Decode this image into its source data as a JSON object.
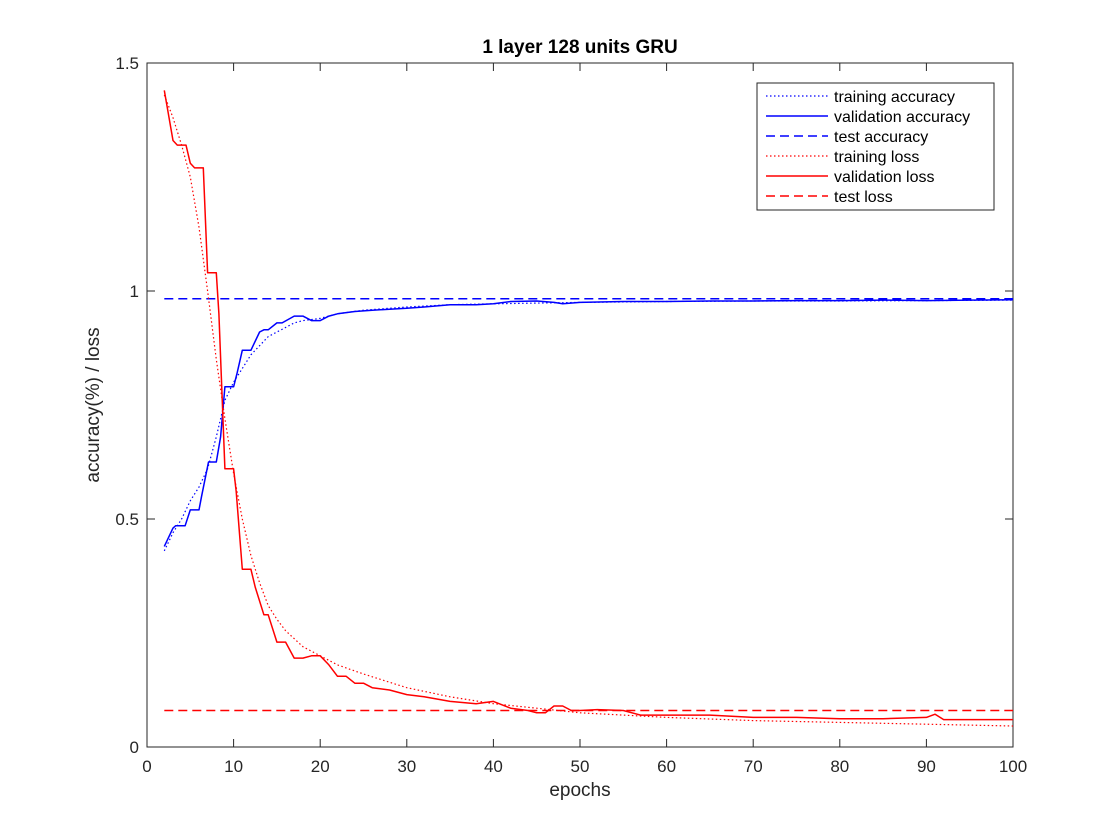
{
  "chart_data": {
    "type": "line",
    "title": "1 layer 128 units GRU",
    "xlabel": "epochs",
    "ylabel": "accuracy(%) / loss",
    "xlim": [
      0,
      100
    ],
    "ylim": [
      0,
      1.5
    ],
    "xticks": [
      "0",
      "10",
      "20",
      "30",
      "40",
      "50",
      "60",
      "70",
      "80",
      "90",
      "100"
    ],
    "yticks": [
      "0",
      "0.5",
      "1",
      "1.5"
    ],
    "grid": false,
    "legend_position": "top-right",
    "series": [
      {
        "name": "training accuracy",
        "color": "#0000ff",
        "style": "dotted",
        "x": [
          2,
          3,
          4,
          5,
          6,
          7,
          8,
          9,
          10,
          11,
          12,
          13,
          14,
          15,
          16,
          17,
          18,
          20,
          22,
          25,
          30,
          35,
          40,
          50,
          60,
          70,
          80,
          90,
          100
        ],
        "y": [
          0.43,
          0.47,
          0.5,
          0.54,
          0.57,
          0.61,
          0.68,
          0.76,
          0.8,
          0.83,
          0.86,
          0.88,
          0.9,
          0.91,
          0.92,
          0.93,
          0.935,
          0.94,
          0.95,
          0.958,
          0.965,
          0.97,
          0.972,
          0.975,
          0.977,
          0.978,
          0.978,
          0.979,
          0.98
        ]
      },
      {
        "name": "validation accuracy",
        "color": "#0000ff",
        "style": "solid",
        "x": [
          2,
          3,
          3.3,
          4.4,
          5,
          6,
          6.3,
          7.1,
          8,
          8.5,
          9,
          10,
          10.4,
          11,
          12,
          13,
          13.5,
          14,
          15,
          15.6,
          17,
          18,
          19,
          20,
          21,
          22,
          24,
          26,
          28,
          30,
          32,
          35,
          38,
          40,
          42,
          45,
          47,
          48,
          50,
          55,
          60,
          65,
          70,
          75,
          80,
          85,
          90,
          95,
          100
        ],
        "y": [
          0.44,
          0.48,
          0.485,
          0.485,
          0.52,
          0.52,
          0.55,
          0.625,
          0.625,
          0.68,
          0.79,
          0.79,
          0.82,
          0.87,
          0.87,
          0.91,
          0.915,
          0.915,
          0.93,
          0.93,
          0.945,
          0.945,
          0.935,
          0.935,
          0.945,
          0.95,
          0.955,
          0.958,
          0.96,
          0.962,
          0.965,
          0.97,
          0.97,
          0.972,
          0.977,
          0.978,
          0.975,
          0.972,
          0.975,
          0.977,
          0.977,
          0.978,
          0.978,
          0.979,
          0.979,
          0.98,
          0.979,
          0.98,
          0.981
        ]
      },
      {
        "name": "test accuracy",
        "color": "#0000ff",
        "style": "dashed",
        "x": [
          2,
          100
        ],
        "y": [
          0.983,
          0.983
        ]
      },
      {
        "name": "training loss",
        "color": "#ff0000",
        "style": "dotted",
        "x": [
          2,
          3,
          4,
          5,
          6,
          7,
          8,
          9,
          10,
          11,
          12,
          13,
          14,
          15,
          16,
          18,
          20,
          22,
          25,
          30,
          35,
          40,
          45,
          50,
          60,
          70,
          80,
          90,
          100
        ],
        "y": [
          1.43,
          1.38,
          1.32,
          1.25,
          1.14,
          1.0,
          0.85,
          0.72,
          0.6,
          0.5,
          0.42,
          0.36,
          0.31,
          0.28,
          0.255,
          0.22,
          0.2,
          0.18,
          0.16,
          0.13,
          0.11,
          0.095,
          0.085,
          0.075,
          0.065,
          0.058,
          0.054,
          0.05,
          0.046
        ]
      },
      {
        "name": "validation loss",
        "color": "#ff0000",
        "style": "solid",
        "x": [
          2,
          3,
          3.5,
          4.5,
          5,
          5.5,
          6.5,
          7,
          8,
          8.3,
          9,
          10,
          10.3,
          11,
          12,
          12.5,
          13.5,
          14,
          15,
          16,
          17,
          18,
          19,
          20,
          21,
          22,
          23,
          24,
          25,
          26,
          28,
          30,
          32,
          35,
          38,
          40,
          42,
          44,
          45,
          46,
          47,
          48,
          49,
          50,
          52,
          55,
          57,
          60,
          65,
          70,
          75,
          80,
          85,
          90,
          91,
          92,
          95,
          100
        ],
        "y": [
          1.44,
          1.33,
          1.32,
          1.32,
          1.28,
          1.27,
          1.27,
          1.04,
          1.04,
          0.95,
          0.61,
          0.61,
          0.56,
          0.39,
          0.39,
          0.35,
          0.29,
          0.29,
          0.23,
          0.23,
          0.195,
          0.195,
          0.2,
          0.2,
          0.18,
          0.155,
          0.155,
          0.14,
          0.14,
          0.13,
          0.125,
          0.115,
          0.11,
          0.1,
          0.095,
          0.1,
          0.085,
          0.08,
          0.075,
          0.075,
          0.09,
          0.09,
          0.08,
          0.08,
          0.082,
          0.08,
          0.07,
          0.07,
          0.07,
          0.065,
          0.065,
          0.062,
          0.062,
          0.065,
          0.072,
          0.06,
          0.06,
          0.06
        ]
      },
      {
        "name": "test loss",
        "color": "#ff0000",
        "style": "dashed",
        "x": [
          2,
          100
        ],
        "y": [
          0.08,
          0.08
        ]
      }
    ]
  }
}
